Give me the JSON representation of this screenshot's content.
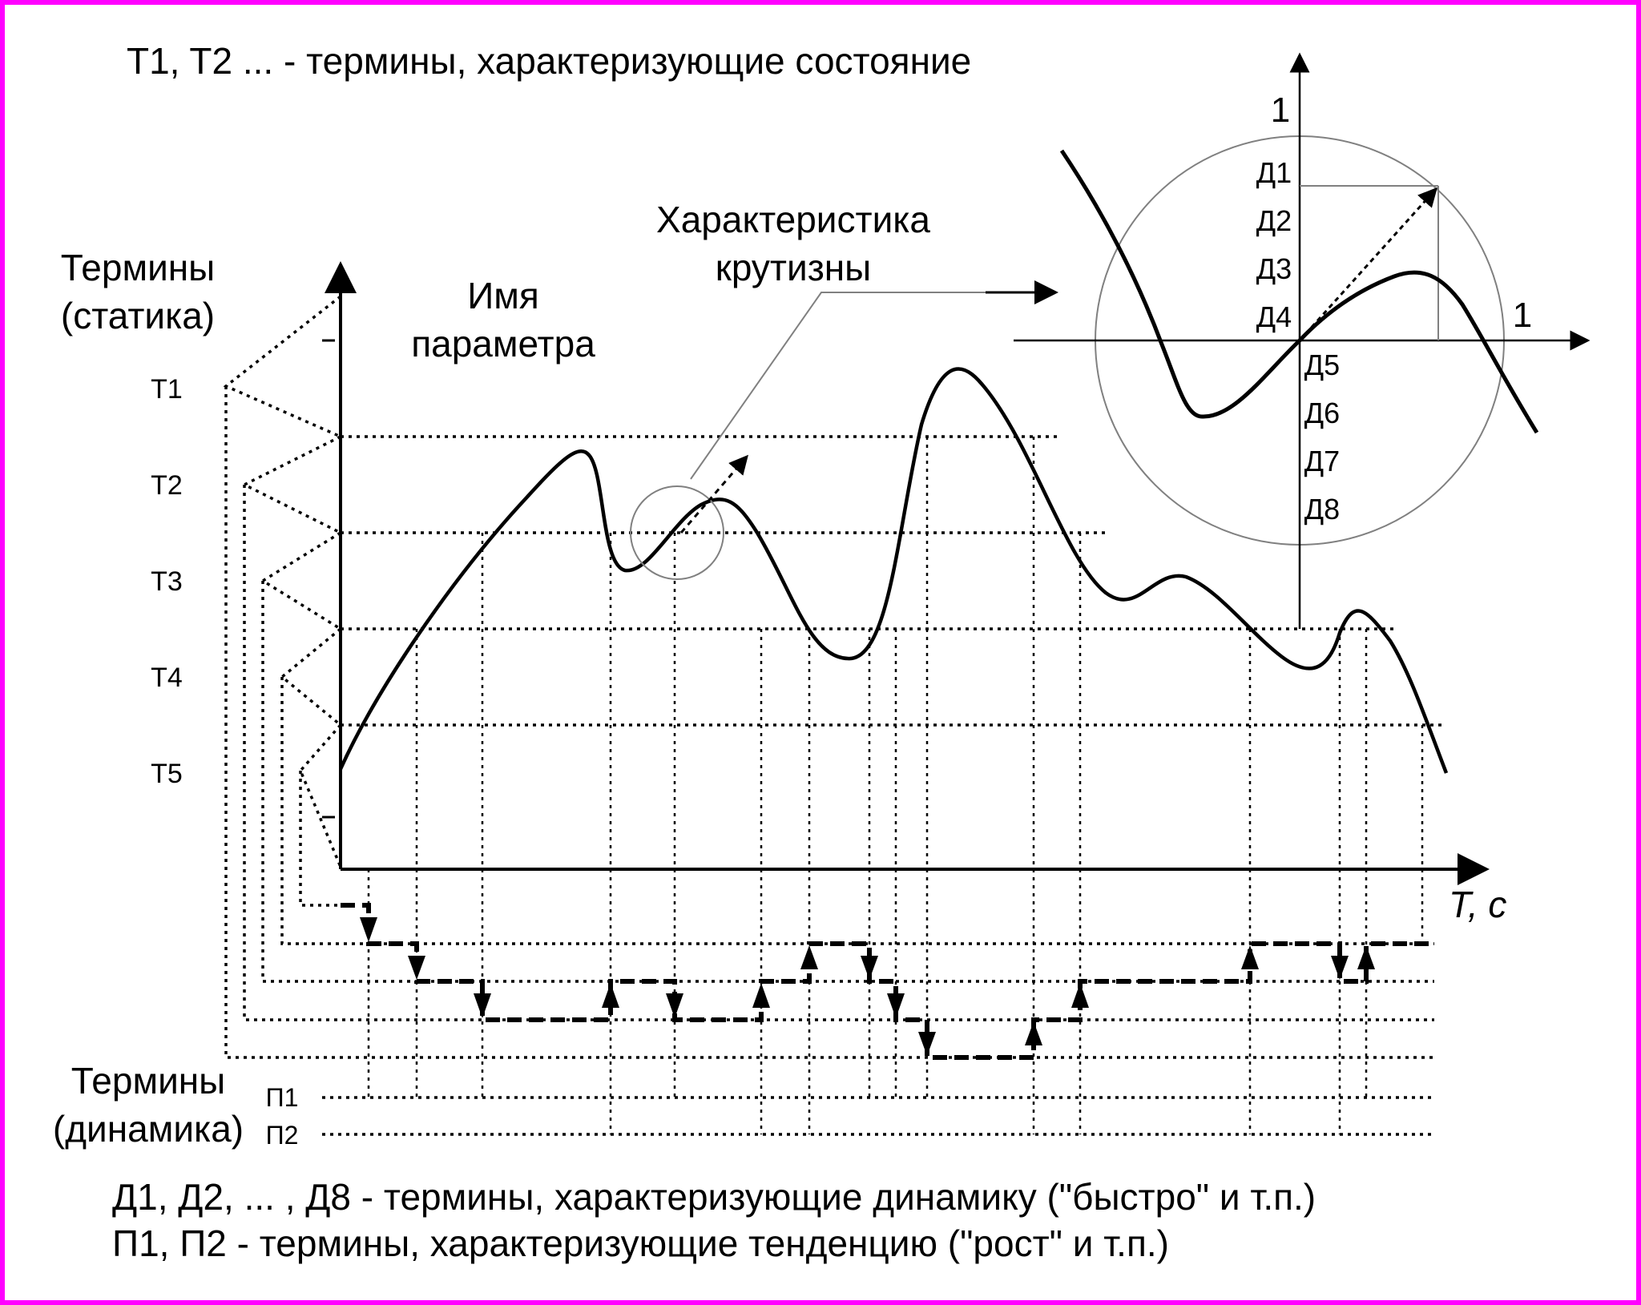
{
  "colors": {
    "border": "#ff00ff",
    "ink": "#000000",
    "guide": "#808080"
  },
  "header": {
    "note_static": "T1, T2 ... - термины, характеризующие состояние"
  },
  "axis_labels": {
    "static_terms": [
      "Термины",
      "(статика)"
    ],
    "param_name": [
      "Имя",
      "параметра"
    ],
    "slope_characteristic": [
      "Характеристика",
      "крутизны"
    ],
    "time_axis": "T, c",
    "dynamic_terms": [
      "Термины",
      "(динамика)"
    ]
  },
  "static_terms": [
    "T1",
    "T2",
    "T3",
    "T4",
    "T5"
  ],
  "tendency_terms": [
    "П1",
    "П2"
  ],
  "inset": {
    "y_unit": "1",
    "x_unit": "1",
    "dynamic_terms_upper": [
      "Д1",
      "Д2",
      "Д3",
      "Д4"
    ],
    "dynamic_terms_lower": [
      "Д5",
      "Д6",
      "Д7",
      "Д8"
    ]
  },
  "footer": {
    "note_dynamic": "Д1, Д2, ... , Д8 - термины, характеризующие динамику (\"быстро\" и т.п.)",
    "note_tendency": "П1, П2 - термины, характеризующие тенденцию (\"рост\" и т.п.)"
  }
}
